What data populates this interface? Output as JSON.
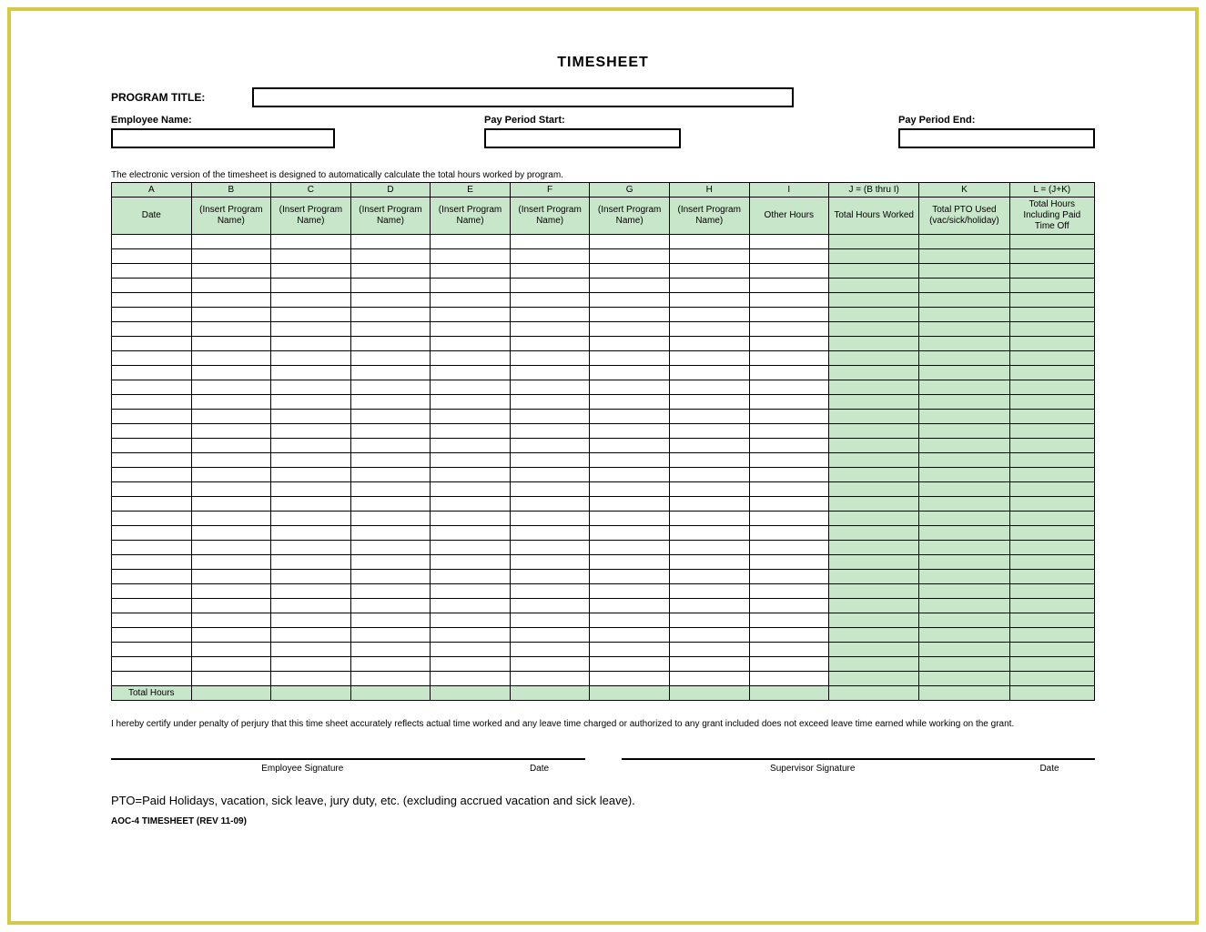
{
  "title": "TIMESHEET",
  "program_title_label": "PROGRAM TITLE:",
  "program_title_value": "",
  "fields": {
    "employee_name_label": "Employee Name:",
    "employee_name_value": "",
    "pay_start_label": "Pay Period Start:",
    "pay_start_value": "",
    "pay_end_label": "Pay Period End:",
    "pay_end_value": ""
  },
  "note": "The electronic version of the timesheet is designed to automatically calculate the total hours worked by program.",
  "columns": {
    "letters": [
      "A",
      "B",
      "C",
      "D",
      "E",
      "F",
      "G",
      "H",
      "I",
      "J = (B thru I)",
      "K",
      "L = (J+K)"
    ],
    "headers": [
      "Date",
      "(Insert Program Name)",
      "(Insert Program Name)",
      "(Insert Program Name)",
      "(Insert Program Name)",
      "(Insert Program Name)",
      "(Insert Program Name)",
      "(Insert Program Name)",
      "Other Hours",
      "Total Hours Worked",
      "Total PTO Used (vac/sick/holiday)",
      "Total Hours Including Paid Time Off"
    ],
    "widths_pct": [
      7.5,
      7.5,
      7.5,
      7.5,
      7.5,
      7.5,
      7.5,
      7.5,
      7.5,
      8.5,
      8.5,
      8.0
    ],
    "green_cols": [
      9,
      10,
      11
    ]
  },
  "data_row_count": 31,
  "total_row_label": "Total Hours",
  "certification": "I hereby certify under penalty of perjury that this time sheet accurately reflects actual time worked and any leave time charged or authorized to any grant included does not exceed leave time earned while working on the grant.",
  "signatures": {
    "emp_sig": "Employee Signature",
    "emp_date": "Date",
    "sup_sig": "Supervisor Signature",
    "sup_date": "Date"
  },
  "pto_note": "PTO=Paid Holidays, vacation, sick leave, jury duty, etc. (excluding accrued vacation and sick leave).",
  "footer_id": "AOC-4 TIMESHEET (REV 11-09)",
  "colors": {
    "frame_border": "#d4c94a",
    "header_green": "#c8e6c9",
    "cell_border": "#000000",
    "background": "#ffffff"
  },
  "typography": {
    "title_size_pt": 16,
    "label_size_pt": 12,
    "body_size_pt": 10,
    "pto_size_pt": 13
  }
}
